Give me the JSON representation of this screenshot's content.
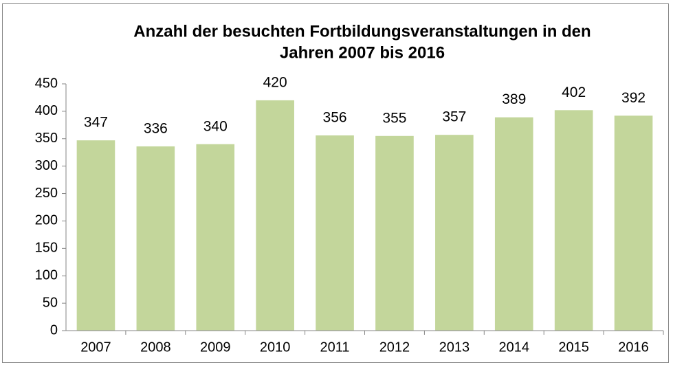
{
  "chart_data": {
    "type": "bar",
    "title": [
      "Anzahl der besuchten Fortbildungsveranstaltungen in den",
      "Jahren 2007 bis 2016"
    ],
    "categories": [
      "2007",
      "2008",
      "2009",
      "2010",
      "2011",
      "2012",
      "2013",
      "2014",
      "2015",
      "2016"
    ],
    "values": [
      347,
      336,
      340,
      420,
      356,
      355,
      357,
      389,
      402,
      392
    ],
    "color": "#c3d69b",
    "ylim": [
      0,
      450
    ],
    "yticks": [
      0,
      50,
      100,
      150,
      200,
      250,
      300,
      350,
      400,
      450
    ],
    "grid": false,
    "data_labels": true
  }
}
